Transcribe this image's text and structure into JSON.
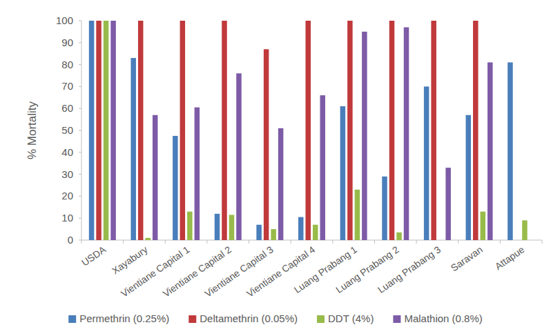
{
  "chart_data": {
    "type": "bar",
    "y_label": "% Mortality",
    "categories": [
      "USDA",
      "Xayabury",
      "Vientiane Capital 1",
      "Vientiane Capital 2",
      "Vientiane Capital 3",
      "Vientiane Capital 4",
      "Luang Prabang 1",
      "Luang Prabang 2",
      "Luang Prabang 3",
      "Saravan",
      "Attapue"
    ],
    "series": [
      {
        "name": "Permethrin (0.25%)",
        "color": "#4a7ebb",
        "values": [
          100,
          83,
          47.5,
          12,
          7,
          10.5,
          61,
          29,
          70,
          57,
          81
        ]
      },
      {
        "name": "Deltamethrin (0.05%)",
        "color": "#c0393b",
        "values": [
          100,
          100,
          100,
          100,
          87,
          100,
          100,
          100,
          100,
          100,
          null
        ]
      },
      {
        "name": "DDT (4%)",
        "color": "#98bb4a",
        "values": [
          100,
          1,
          13,
          11.5,
          5,
          7,
          23,
          3.5,
          0,
          13,
          9
        ]
      },
      {
        "name": "Malathion (0.8%)",
        "color": "#7d5ba6",
        "values": [
          100,
          57,
          60.5,
          76,
          51,
          66,
          95,
          97,
          33,
          81,
          null
        ]
      }
    ],
    "ylim": [
      0,
      100
    ],
    "yticks": [
      0,
      10,
      20,
      30,
      40,
      50,
      60,
      70,
      80,
      90,
      100
    ],
    "grid": false,
    "legend": "bottom"
  }
}
